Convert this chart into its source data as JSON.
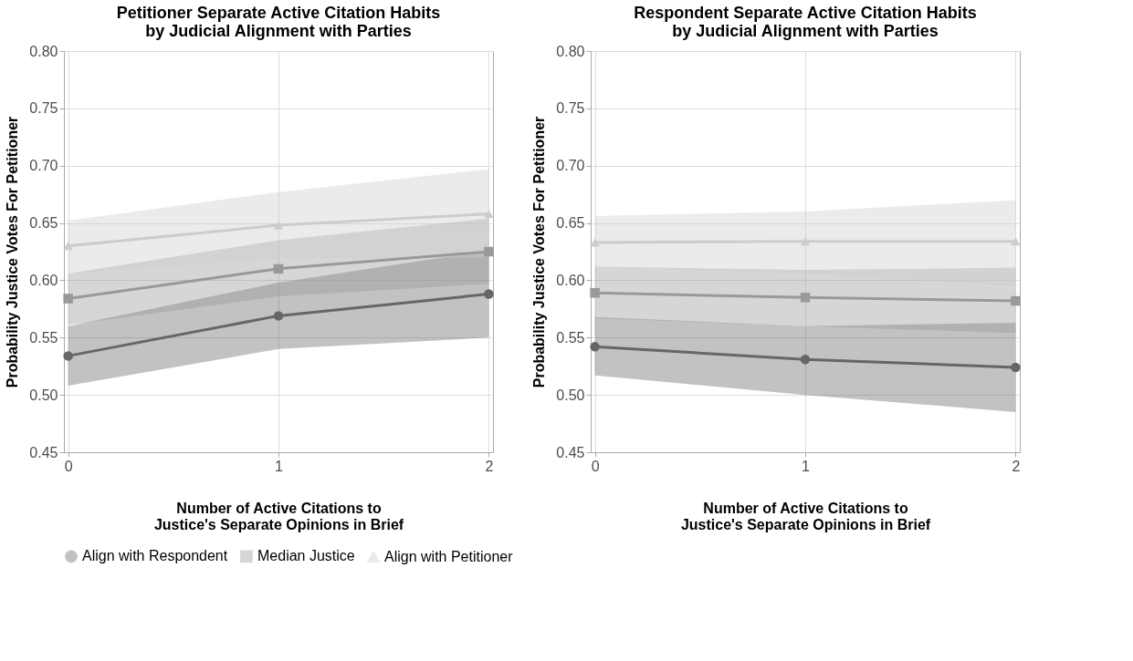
{
  "chart_data": [
    {
      "type": "line",
      "title": "Petitioner Separate Active Citation Habits\nby Judicial Alignment with Parties",
      "xlabel": "Number of Active Citations to\nJustice's Separate Opinions in Brief",
      "ylabel": "Probability Justice Votes For Petitioner",
      "x": [
        0,
        1,
        2
      ],
      "xlim": [
        -0.02,
        2.02
      ],
      "xticks": [
        0,
        1,
        2
      ],
      "ylim": [
        0.45,
        0.8
      ],
      "yticks": [
        0.45,
        {
          "value": 0.5,
          "label": "0.50"
        },
        0.55,
        {
          "value": 0.6,
          "label": "0.60"
        },
        0.65,
        {
          "value": 0.7,
          "label": "0.70"
        },
        0.75,
        {
          "value": 0.8,
          "label": "0.80"
        }
      ],
      "grid": true,
      "legend": "bottom",
      "line_style": "solid",
      "series": [
        {
          "name": "Align with Respondent",
          "color": "#666666",
          "marker": "circle",
          "values": [
            0.534,
            0.569,
            0.588
          ],
          "lower": [
            0.508,
            0.54,
            0.55
          ],
          "upper": [
            0.56,
            0.598,
            0.626
          ]
        },
        {
          "name": "Median Justice",
          "color": "#999999",
          "marker": "square",
          "values": [
            0.584,
            0.61,
            0.625
          ],
          "lower": [
            0.561,
            0.586,
            0.597
          ],
          "upper": [
            0.606,
            0.635,
            0.654
          ]
        },
        {
          "name": "Align with Petitioner",
          "color": "#cccccc",
          "marker": "triangle",
          "values": [
            0.63,
            0.648,
            0.658
          ],
          "lower": [
            0.606,
            0.619,
            0.62
          ],
          "upper": [
            0.652,
            0.677,
            0.697
          ]
        }
      ]
    },
    {
      "type": "line",
      "title": "Respondent Separate Active Citation Habits\nby Judicial Alignment with Parties",
      "xlabel": "Number of Active Citations to\nJustice's Separate Opinions in Brief",
      "ylabel": "Probability Justice Votes For Petitioner",
      "x": [
        0,
        1,
        2
      ],
      "xlim": [
        -0.02,
        2.02
      ],
      "xticks": [
        0,
        1,
        2
      ],
      "ylim": [
        0.45,
        0.8
      ],
      "yticks": [
        0.45,
        {
          "value": 0.5,
          "label": "0.50"
        },
        0.55,
        {
          "value": 0.6,
          "label": "0.60"
        },
        0.65,
        {
          "value": 0.7,
          "label": "0.70"
        },
        0.75,
        {
          "value": 0.8,
          "label": "0.80"
        }
      ],
      "grid": true,
      "legend": "bottom",
      "line_style": "solid",
      "series": [
        {
          "name": "Align with Respondent",
          "color": "#666666",
          "marker": "circle",
          "values": [
            0.542,
            0.531,
            0.524
          ],
          "lower": [
            0.517,
            0.5,
            0.485
          ],
          "upper": [
            0.568,
            0.56,
            0.563
          ]
        },
        {
          "name": "Median Justice",
          "color": "#999999",
          "marker": "square",
          "values": [
            0.589,
            0.585,
            0.582
          ],
          "lower": [
            0.567,
            0.56,
            0.554
          ],
          "upper": [
            0.612,
            0.609,
            0.611
          ]
        },
        {
          "name": "Align with Petitioner",
          "color": "#cccccc",
          "marker": "triangle",
          "values": [
            0.633,
            0.634,
            0.634
          ],
          "lower": [
            0.612,
            0.606,
            0.595
          ],
          "upper": [
            0.656,
            0.66,
            0.67
          ]
        }
      ]
    }
  ]
}
